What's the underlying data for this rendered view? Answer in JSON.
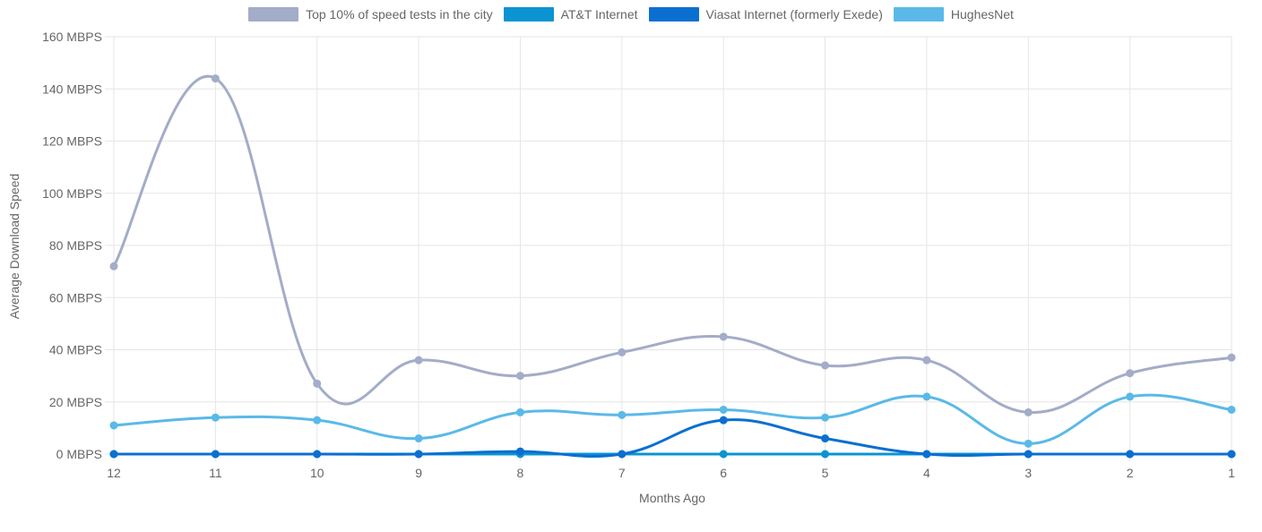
{
  "chart_data": {
    "type": "line",
    "xlabel": "Months Ago",
    "ylabel": "Average Download Speed",
    "categories": [
      "12",
      "11",
      "10",
      "9",
      "8",
      "7",
      "6",
      "5",
      "4",
      "3",
      "2",
      "1"
    ],
    "y_ticks": [
      "0 MBPS",
      "20 MBPS",
      "40 MBPS",
      "60 MBPS",
      "80 MBPS",
      "100 MBPS",
      "120 MBPS",
      "140 MBPS",
      "160 MBPS"
    ],
    "ylim": [
      0,
      160
    ],
    "grid": true,
    "legend_position": "top-center",
    "series": [
      {
        "name": "Top 10% of speed tests in the city",
        "color": "#A3ACC8",
        "values": [
          72,
          144,
          27,
          36,
          30,
          39,
          45,
          34,
          36,
          16,
          31,
          37
        ]
      },
      {
        "name": "AT&T Internet",
        "color": "#0A94D2",
        "values": [
          0,
          0,
          0,
          0,
          0,
          0,
          0,
          0,
          0,
          0,
          0,
          0
        ]
      },
      {
        "name": "Viasat Internet (formerly Exede)",
        "color": "#0B6FD1",
        "values": [
          0,
          0,
          0,
          0,
          1,
          0,
          13,
          6,
          0,
          0,
          0,
          0
        ]
      },
      {
        "name": "HughesNet",
        "color": "#5AB9E8",
        "values": [
          11,
          14,
          13,
          6,
          16,
          15,
          17,
          14,
          22,
          4,
          22,
          17
        ]
      }
    ]
  }
}
